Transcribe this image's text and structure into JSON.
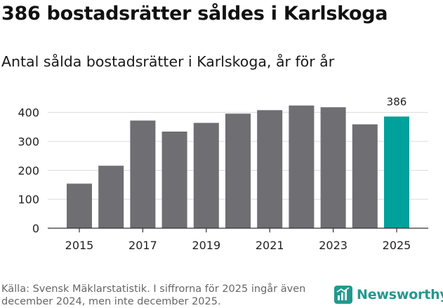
{
  "header": {
    "title": "386 bostadsrätter såldes i Karlskoga",
    "subtitle": "Antal sålda bostadsrätter i Karlskoga, år för år"
  },
  "footer": {
    "source": "Källa: Svensk Mäklarstatistik. I siffrorna för 2025 ingår även december 2024, men inte december 2025.",
    "brand": "Newsworthy"
  },
  "colors": {
    "bar": "#6e6e73",
    "highlight": "#00a19a",
    "brand": "#23998e"
  },
  "chart_data": {
    "type": "bar",
    "title": "386 bostadsrätter såldes i Karlskoga",
    "subtitle": "Antal sålda bostadsrätter i Karlskoga, år för år",
    "xlabel": "",
    "ylabel": "",
    "categories": [
      "2015",
      "2016",
      "2017",
      "2018",
      "2019",
      "2020",
      "2021",
      "2022",
      "2023",
      "2024",
      "2025"
    ],
    "values": [
      154,
      216,
      372,
      334,
      364,
      396,
      408,
      424,
      418,
      359,
      386
    ],
    "highlight_index": 10,
    "data_labels": [
      {
        "index": 10,
        "text": "386"
      }
    ],
    "x_tick_labels": [
      "2015",
      "2017",
      "2019",
      "2021",
      "2023",
      "2025"
    ],
    "y_ticks": [
      0,
      100,
      200,
      300,
      400
    ],
    "ylim": [
      0,
      450
    ],
    "grid": true,
    "legend": "none"
  }
}
